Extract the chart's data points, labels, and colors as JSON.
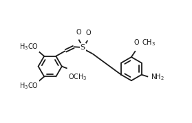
{
  "bg_color": "#ffffff",
  "line_color": "#1a1a1a",
  "lw": 1.3,
  "fs": 7.0,
  "figsize": [
    2.79,
    1.79
  ],
  "dpi": 100,
  "xlim": [
    0.5,
    5.2
  ],
  "ylim": [
    0.6,
    3.2
  ]
}
